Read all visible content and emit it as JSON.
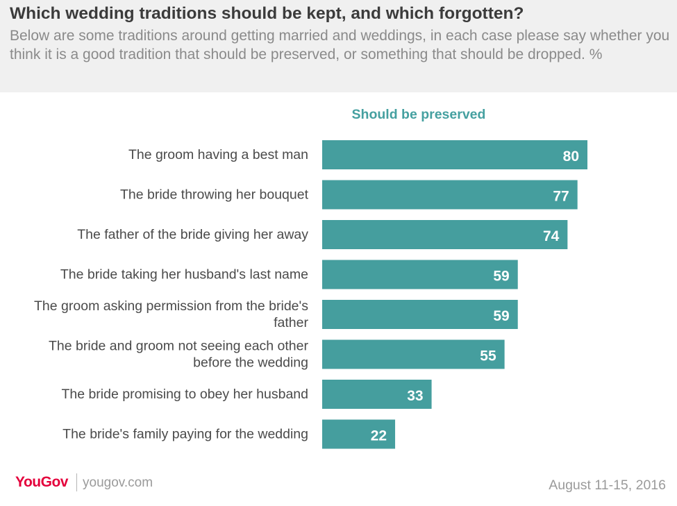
{
  "header": {
    "title": "Which wedding traditions should be kept, and which forgotten?",
    "subtitle": "Below are some traditions around getting married and weddings, in each case please say whether you think it is a good tradition that should be preserved, or something that should be dropped. %"
  },
  "colors": {
    "bar": "#459e9e",
    "series_label": "#45a0a0",
    "logo": "#e4003b"
  },
  "chart_data": {
    "type": "bar",
    "orientation": "horizontal",
    "categories": [
      "The groom having a best man",
      "The bride throwing her bouquet",
      "The father of the bride giving her away",
      "The bride taking her husband's last name",
      "The groom asking permission from the bride's father",
      "The bride and groom not seeing each other before the wedding",
      "The bride promising to obey her husband",
      "The bride's family paying for the wedding"
    ],
    "series": [
      {
        "name": "Should be preserved",
        "values": [
          80,
          77,
          74,
          59,
          59,
          55,
          33,
          22
        ]
      }
    ],
    "xlim": [
      0,
      100
    ],
    "grid": false,
    "data_labels": true
  },
  "footer": {
    "logo": "YouGov",
    "site": "yougov.com",
    "date": "August 11-15, 2016"
  }
}
